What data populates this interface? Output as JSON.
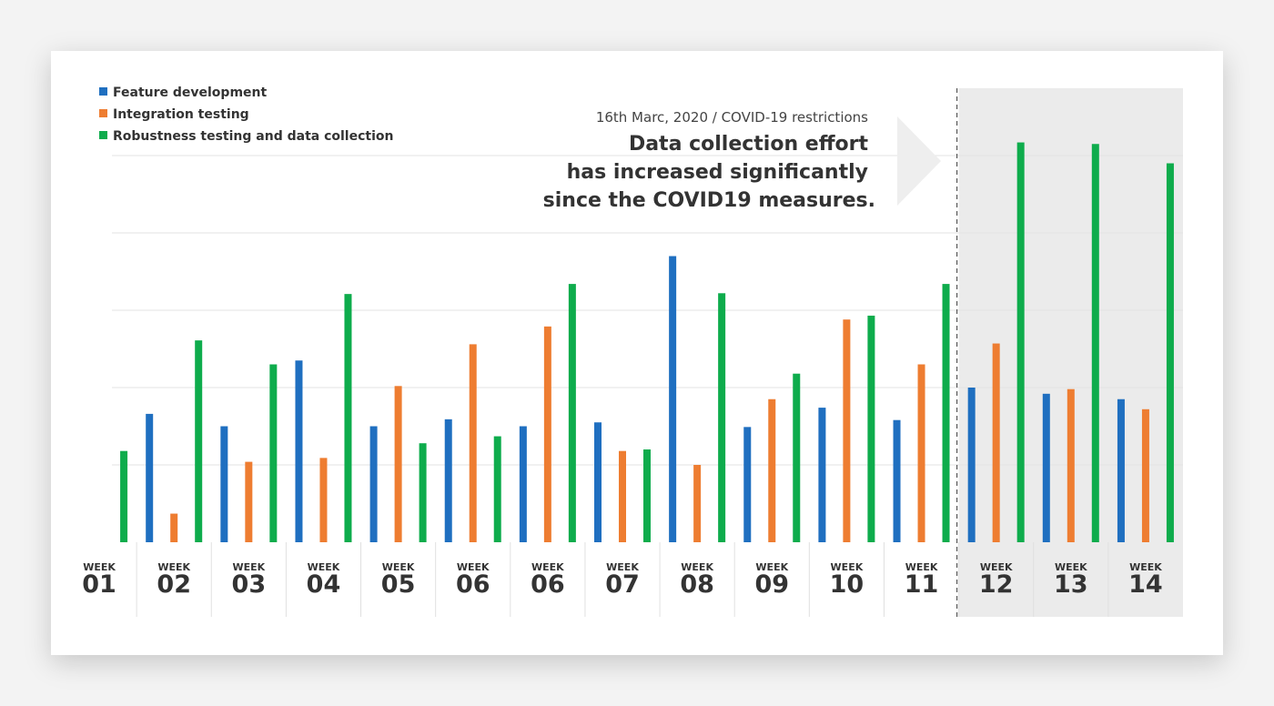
{
  "chart_data": {
    "type": "bar",
    "grid": true,
    "legend_position": "top-left",
    "ylim": [
      0,
      50
    ],
    "categories": [
      {
        "week": "WEEK",
        "num": "01"
      },
      {
        "week": "WEEK",
        "num": "02"
      },
      {
        "week": "WEEK",
        "num": "03"
      },
      {
        "week": "WEEK",
        "num": "04"
      },
      {
        "week": "WEEK",
        "num": "05"
      },
      {
        "week": "WEEK",
        "num": "06"
      },
      {
        "week": "WEEK",
        "num": "06"
      },
      {
        "week": "WEEK",
        "num": "07"
      },
      {
        "week": "WEEK",
        "num": "08"
      },
      {
        "week": "WEEK",
        "num": "09"
      },
      {
        "week": "WEEK",
        "num": "10"
      },
      {
        "week": "WEEK",
        "num": "11"
      },
      {
        "week": "WEEK",
        "num": "12"
      },
      {
        "week": "WEEK",
        "num": "13"
      },
      {
        "week": "WEEK",
        "num": "14"
      }
    ],
    "highlighted_categories": [
      "12",
      "13",
      "14"
    ],
    "series": [
      {
        "name": "Feature development",
        "color": "#1f6fc0",
        "values": [
          null,
          16.6,
          15.0,
          23.5,
          15.0,
          15.9,
          15.0,
          15.5,
          37.0,
          14.9,
          17.4,
          15.8,
          20.0,
          19.2,
          18.5
        ]
      },
      {
        "name": "Integration testing",
        "color": "#ee7d31",
        "values": [
          null,
          3.7,
          10.4,
          10.9,
          20.2,
          25.6,
          27.9,
          11.8,
          10.0,
          18.5,
          28.8,
          23.0,
          25.7,
          19.8,
          17.2
        ]
      },
      {
        "name": "Robustness testing and data collection",
        "color": "#0eac4c",
        "values": [
          11.8,
          26.1,
          23.0,
          32.1,
          12.8,
          13.7,
          33.4,
          12.0,
          32.2,
          21.8,
          29.3,
          33.4,
          51.7,
          51.5,
          49.0
        ]
      }
    ],
    "annotations": {
      "date_line": "16th Marc, 2020 / COVID-19 restrictions",
      "headline": [
        "Data collection effort",
        "has increased significantly",
        "since the COVID19 measures."
      ]
    }
  }
}
